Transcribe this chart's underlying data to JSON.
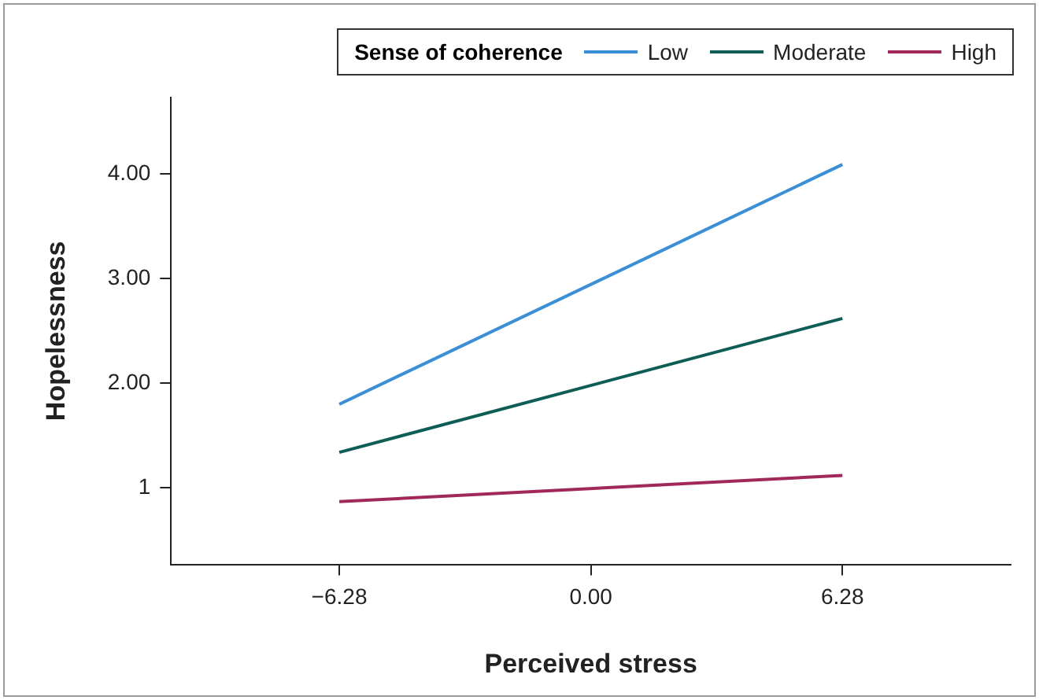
{
  "chart_data": {
    "type": "line",
    "xlabel": "Perceived stress",
    "ylabel": "Hopelessness",
    "legend_title": "Sense of coherence",
    "legend": "top right",
    "marker": "none",
    "line_style": "solid",
    "x": [
      -6.28,
      6.28
    ],
    "xlim": [
      -10.48,
      10.48
    ],
    "xticks": [
      {
        "value": -6.28,
        "label": "−6.28"
      },
      {
        "value": 0,
        "label": "0.00"
      },
      {
        "value": 6.28,
        "label": "6.28"
      }
    ],
    "ylim": [
      0.27,
      4.73
    ],
    "yticks": [
      {
        "value": 1,
        "label": "1"
      },
      {
        "value": 2,
        "label": "2.00"
      },
      {
        "value": 3,
        "label": "3.00"
      },
      {
        "value": 4,
        "label": "4.00"
      }
    ],
    "series": [
      {
        "name": "Low",
        "color": "#3b8fd6",
        "values": [
          1.8,
          4.09
        ]
      },
      {
        "name": "Moderate",
        "color": "#0f5e56",
        "values": [
          1.34,
          2.62
        ]
      },
      {
        "name": "High",
        "color": "#a0285a",
        "values": [
          0.87,
          1.12
        ]
      }
    ]
  }
}
